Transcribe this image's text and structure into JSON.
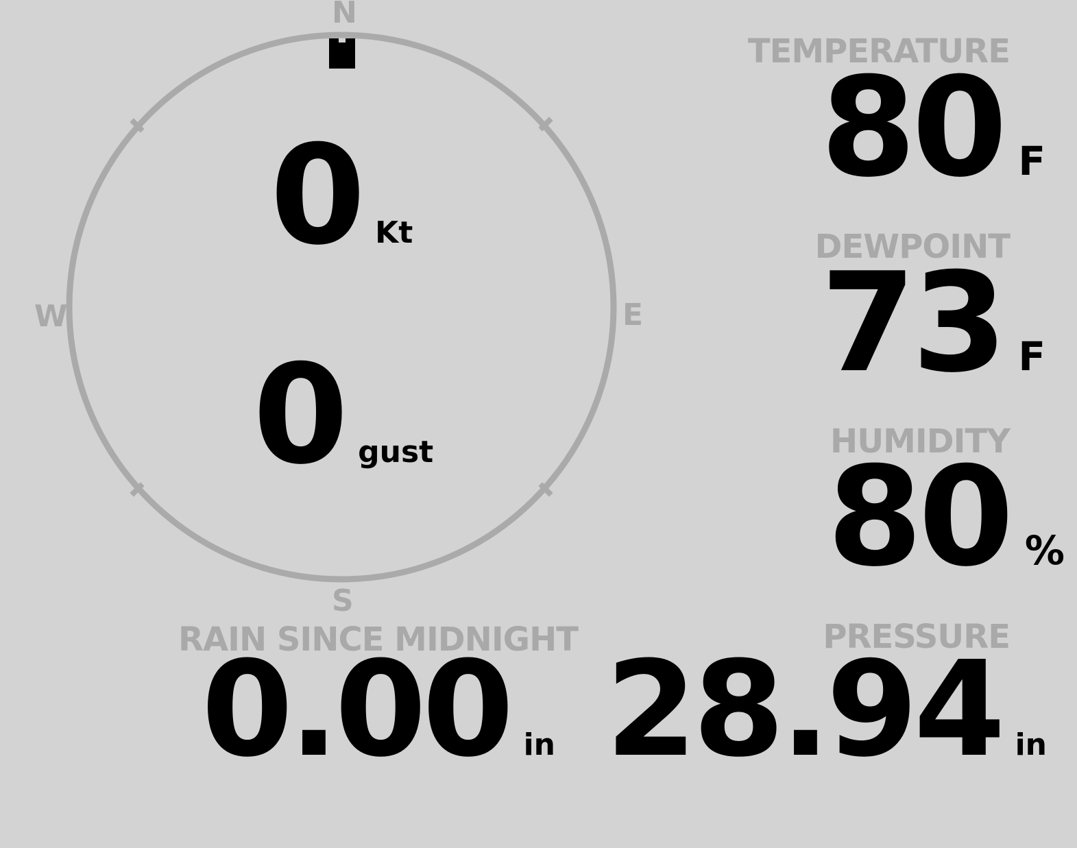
{
  "wind": {
    "compass": {
      "north": "N",
      "east": "E",
      "south": "S",
      "west": "W"
    },
    "direction_deg": 0,
    "speed": "0",
    "speed_unit": "Kt",
    "gust": "0",
    "gust_unit": "gust",
    "colors": {
      "ring": "#aaaaaa",
      "needle": "#000000"
    }
  },
  "temperature": {
    "label": "TEMPERATURE",
    "value": "80",
    "unit": "F"
  },
  "dewpoint": {
    "label": "DEWPOINT",
    "value": "73",
    "unit": "F"
  },
  "humidity": {
    "label": "HUMIDITY",
    "value": "80",
    "unit": "%"
  },
  "rain": {
    "label": "RAIN SINCE MIDNIGHT",
    "value": "0.00",
    "unit": "in"
  },
  "pressure": {
    "label": "PRESSURE",
    "value": "28.94",
    "unit": "in"
  },
  "colors": {
    "background": "#d3d3d3",
    "label": "#a9a9a9",
    "value": "#000000"
  }
}
